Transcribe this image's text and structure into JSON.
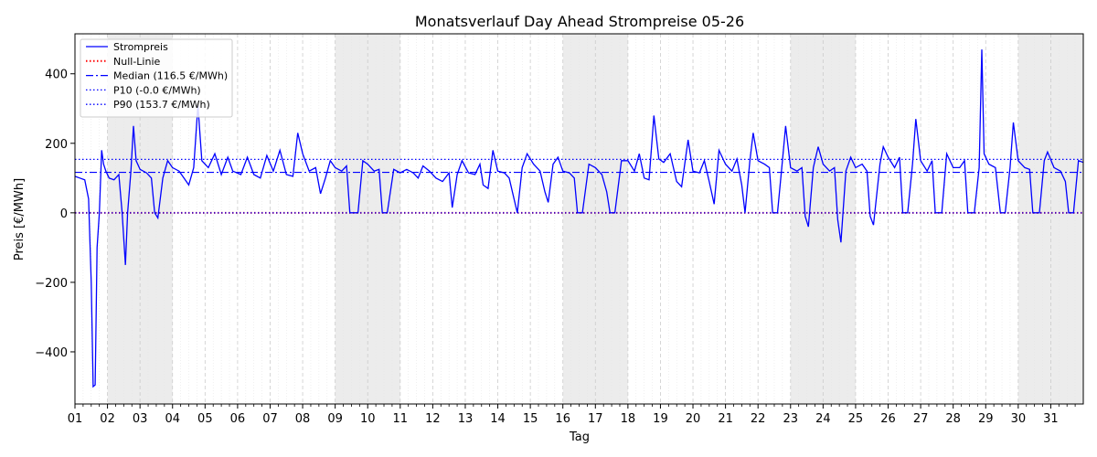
{
  "chart_data": {
    "type": "line",
    "title": "Monatsverlauf Day Ahead Strompreise 05-26",
    "xlabel": "Tag",
    "ylabel": "Preis [€/MWh]",
    "x_tick_labels": [
      "01",
      "02",
      "03",
      "04",
      "05",
      "06",
      "07",
      "08",
      "09",
      "10",
      "11",
      "12",
      "13",
      "14",
      "15",
      "16",
      "17",
      "18",
      "19",
      "20",
      "21",
      "22",
      "23",
      "24",
      "25",
      "26",
      "27",
      "28",
      "29",
      "30",
      "31"
    ],
    "xlim_days": [
      1,
      32
    ],
    "ylim": [
      -550,
      515
    ],
    "y_ticks": [
      -400,
      -200,
      0,
      200,
      400
    ],
    "y_tick_labels": [
      "−400",
      "−200",
      "0",
      "200",
      "400"
    ],
    "weekend_days": [
      2,
      3,
      9,
      10,
      16,
      17,
      23,
      24,
      30,
      31
    ],
    "grid": true,
    "legend_position": "top-left",
    "colors": {
      "price": "#0000ff",
      "zero": "#ff0000",
      "median": "#0000ff",
      "p10": "#0000ff",
      "p90": "#0000ff",
      "weekend": "#ececec"
    },
    "series": [
      {
        "name": "Strompreis",
        "style": "solid",
        "points": [
          [
            1.0,
            105
          ],
          [
            1.15,
            100
          ],
          [
            1.3,
            95
          ],
          [
            1.42,
            40
          ],
          [
            1.5,
            -200
          ],
          [
            1.56,
            -500
          ],
          [
            1.62,
            -495
          ],
          [
            1.68,
            -100
          ],
          [
            1.75,
            0
          ],
          [
            1.82,
            180
          ],
          [
            1.88,
            140
          ],
          [
            1.95,
            120
          ],
          [
            2.05,
            100
          ],
          [
            2.2,
            95
          ],
          [
            2.35,
            110
          ],
          [
            2.45,
            0
          ],
          [
            2.55,
            -150
          ],
          [
            2.62,
            0
          ],
          [
            2.72,
            120
          ],
          [
            2.8,
            250
          ],
          [
            2.88,
            150
          ],
          [
            3.0,
            125
          ],
          [
            3.2,
            115
          ],
          [
            3.35,
            100
          ],
          [
            3.45,
            0
          ],
          [
            3.55,
            -15
          ],
          [
            3.7,
            100
          ],
          [
            3.85,
            150
          ],
          [
            4.0,
            130
          ],
          [
            4.2,
            120
          ],
          [
            4.35,
            100
          ],
          [
            4.5,
            80
          ],
          [
            4.65,
            130
          ],
          [
            4.78,
            310
          ],
          [
            4.9,
            150
          ],
          [
            5.1,
            130
          ],
          [
            5.3,
            170
          ],
          [
            5.5,
            110
          ],
          [
            5.7,
            160
          ],
          [
            5.85,
            120
          ],
          [
            6.1,
            110
          ],
          [
            6.3,
            160
          ],
          [
            6.5,
            110
          ],
          [
            6.7,
            100
          ],
          [
            6.9,
            165
          ],
          [
            7.1,
            120
          ],
          [
            7.3,
            180
          ],
          [
            7.5,
            110
          ],
          [
            7.7,
            105
          ],
          [
            7.85,
            230
          ],
          [
            8.0,
            170
          ],
          [
            8.2,
            120
          ],
          [
            8.4,
            130
          ],
          [
            8.55,
            55
          ],
          [
            8.7,
            100
          ],
          [
            8.85,
            150
          ],
          [
            9.0,
            130
          ],
          [
            9.2,
            120
          ],
          [
            9.35,
            135
          ],
          [
            9.45,
            0
          ],
          [
            9.55,
            0
          ],
          [
            9.7,
            0
          ],
          [
            9.85,
            150
          ],
          [
            10.0,
            140
          ],
          [
            10.2,
            120
          ],
          [
            10.35,
            125
          ],
          [
            10.45,
            0
          ],
          [
            10.6,
            0
          ],
          [
            10.8,
            125
          ],
          [
            11.0,
            115
          ],
          [
            11.2,
            125
          ],
          [
            11.4,
            115
          ],
          [
            11.55,
            100
          ],
          [
            11.7,
            135
          ],
          [
            11.9,
            120
          ],
          [
            12.1,
            100
          ],
          [
            12.3,
            90
          ],
          [
            12.5,
            115
          ],
          [
            12.6,
            15
          ],
          [
            12.75,
            110
          ],
          [
            12.9,
            150
          ],
          [
            13.1,
            115
          ],
          [
            13.3,
            110
          ],
          [
            13.45,
            140
          ],
          [
            13.55,
            80
          ],
          [
            13.7,
            70
          ],
          [
            13.85,
            180
          ],
          [
            14.0,
            120
          ],
          [
            14.2,
            115
          ],
          [
            14.35,
            100
          ],
          [
            14.5,
            40
          ],
          [
            14.6,
            0
          ],
          [
            14.75,
            130
          ],
          [
            14.9,
            170
          ],
          [
            15.1,
            140
          ],
          [
            15.3,
            120
          ],
          [
            15.45,
            60
          ],
          [
            15.55,
            30
          ],
          [
            15.7,
            140
          ],
          [
            15.85,
            160
          ],
          [
            16.0,
            120
          ],
          [
            16.2,
            115
          ],
          [
            16.35,
            100
          ],
          [
            16.45,
            0
          ],
          [
            16.6,
            0
          ],
          [
            16.8,
            140
          ],
          [
            17.0,
            130
          ],
          [
            17.2,
            110
          ],
          [
            17.35,
            60
          ],
          [
            17.45,
            0
          ],
          [
            17.6,
            0
          ],
          [
            17.8,
            150
          ],
          [
            18.0,
            150
          ],
          [
            18.2,
            120
          ],
          [
            18.35,
            170
          ],
          [
            18.5,
            100
          ],
          [
            18.65,
            95
          ],
          [
            18.8,
            280
          ],
          [
            18.95,
            155
          ],
          [
            19.1,
            145
          ],
          [
            19.3,
            170
          ],
          [
            19.5,
            90
          ],
          [
            19.65,
            75
          ],
          [
            19.85,
            210
          ],
          [
            20.0,
            120
          ],
          [
            20.2,
            115
          ],
          [
            20.35,
            150
          ],
          [
            20.5,
            90
          ],
          [
            20.65,
            25
          ],
          [
            20.8,
            180
          ],
          [
            21.0,
            140
          ],
          [
            21.2,
            120
          ],
          [
            21.35,
            155
          ],
          [
            21.5,
            80
          ],
          [
            21.6,
            0
          ],
          [
            21.75,
            150
          ],
          [
            21.85,
            230
          ],
          [
            22.0,
            150
          ],
          [
            22.2,
            140
          ],
          [
            22.35,
            130
          ],
          [
            22.45,
            0
          ],
          [
            22.6,
            0
          ],
          [
            22.75,
            150
          ],
          [
            22.85,
            250
          ],
          [
            23.0,
            130
          ],
          [
            23.2,
            120
          ],
          [
            23.35,
            130
          ],
          [
            23.45,
            -10
          ],
          [
            23.55,
            -40
          ],
          [
            23.7,
            130
          ],
          [
            23.85,
            190
          ],
          [
            24.0,
            140
          ],
          [
            24.2,
            120
          ],
          [
            24.35,
            130
          ],
          [
            24.45,
            -20
          ],
          [
            24.55,
            -85
          ],
          [
            24.7,
            120
          ],
          [
            24.85,
            160
          ],
          [
            25.0,
            130
          ],
          [
            25.2,
            140
          ],
          [
            25.35,
            120
          ],
          [
            25.45,
            -10
          ],
          [
            25.55,
            -35
          ],
          [
            25.75,
            140
          ],
          [
            25.85,
            190
          ],
          [
            26.0,
            160
          ],
          [
            26.2,
            130
          ],
          [
            26.35,
            160
          ],
          [
            26.45,
            0
          ],
          [
            26.6,
            0
          ],
          [
            26.75,
            140
          ],
          [
            26.85,
            270
          ],
          [
            27.0,
            150
          ],
          [
            27.2,
            120
          ],
          [
            27.35,
            150
          ],
          [
            27.45,
            0
          ],
          [
            27.65,
            0
          ],
          [
            27.8,
            170
          ],
          [
            28.0,
            130
          ],
          [
            28.2,
            130
          ],
          [
            28.35,
            150
          ],
          [
            28.45,
            0
          ],
          [
            28.65,
            0
          ],
          [
            28.8,
            130
          ],
          [
            28.88,
            470
          ],
          [
            28.95,
            170
          ],
          [
            29.1,
            140
          ],
          [
            29.3,
            130
          ],
          [
            29.45,
            0
          ],
          [
            29.6,
            0
          ],
          [
            29.75,
            130
          ],
          [
            29.85,
            260
          ],
          [
            30.0,
            150
          ],
          [
            30.2,
            130
          ],
          [
            30.35,
            125
          ],
          [
            30.45,
            0
          ],
          [
            30.65,
            0
          ],
          [
            30.8,
            150
          ],
          [
            30.9,
            175
          ],
          [
            31.1,
            130
          ],
          [
            31.3,
            120
          ],
          [
            31.45,
            90
          ],
          [
            31.55,
            0
          ],
          [
            31.7,
            0
          ],
          [
            31.85,
            150
          ],
          [
            32.0,
            145
          ]
        ]
      },
      {
        "name": "Null-Linie",
        "style": "dotted",
        "value": 0
      },
      {
        "name": "Median (116.5 €/MWh)",
        "style": "dashdot",
        "value": 116.5
      },
      {
        "name": "P10 (-0.0 €/MWh)",
        "style": "dotted",
        "value": -0.0
      },
      {
        "name": "P90 (153.7 €/MWh)",
        "style": "dotted",
        "value": 153.7
      }
    ]
  }
}
